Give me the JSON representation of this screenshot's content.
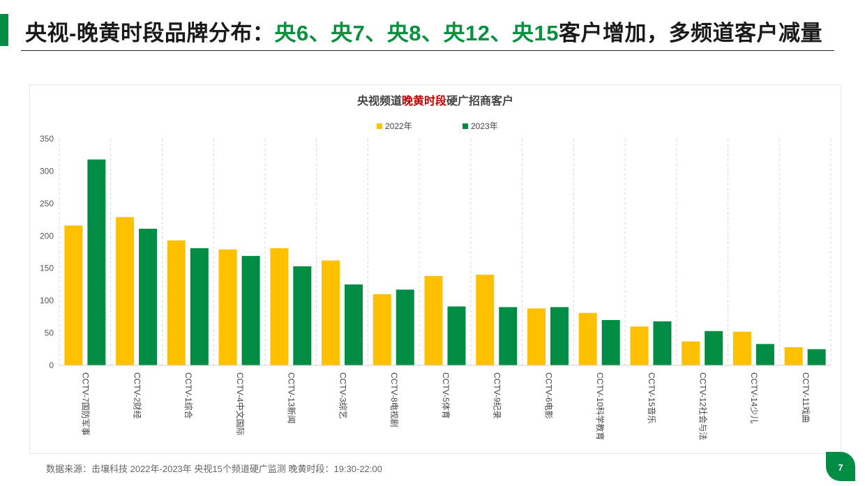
{
  "page": {
    "title_prefix": "央视-晚黄时段品牌分布：",
    "title_highlight": "央6、央7、央8、央12、央15",
    "title_suffix": "客户增加，多频道客户减量",
    "footer_source": "数据来源：击壤科技  2022年-2023年 央视15个频道硬广监测    晚黄时段：19:30-22:00",
    "page_number": "7",
    "colors": {
      "accent": "#008d43",
      "title_highlight": "#07913f"
    }
  },
  "chart_data": {
    "type": "bar",
    "title_part1": "央视频道",
    "title_part2": "晚黄时段",
    "title_part3": "硬广招商客户",
    "categories": [
      "CCTV-7国防军事",
      "CCTV-2财经",
      "CCTV-1综合",
      "CCTV-4中文国际",
      "CCTV-13新闻",
      "CCTV-3综艺",
      "CCTV-8电视剧",
      "CCTV-5体育",
      "CCTV-9纪录",
      "CCTV-6电影",
      "CCTV-10科学教育",
      "CCTV-15音乐",
      "CCTV-12社会与法",
      "CCTV-14少儿",
      "CCTV-11戏曲"
    ],
    "series": [
      {
        "name": "2022年",
        "color": "#ffc000",
        "values": [
          216,
          229,
          193,
          179,
          181,
          162,
          110,
          138,
          140,
          88,
          81,
          60,
          37,
          52,
          28
        ]
      },
      {
        "name": "2023年",
        "color": "#008d43",
        "values": [
          318,
          211,
          181,
          169,
          153,
          125,
          117,
          91,
          90,
          90,
          70,
          68,
          53,
          33,
          25
        ]
      }
    ],
    "ylim": [
      0,
      350
    ],
    "yticks": [
      0,
      50,
      100,
      150,
      200,
      250,
      300,
      350
    ],
    "legend_position": "top-center",
    "grid": "vertical-dashed"
  }
}
